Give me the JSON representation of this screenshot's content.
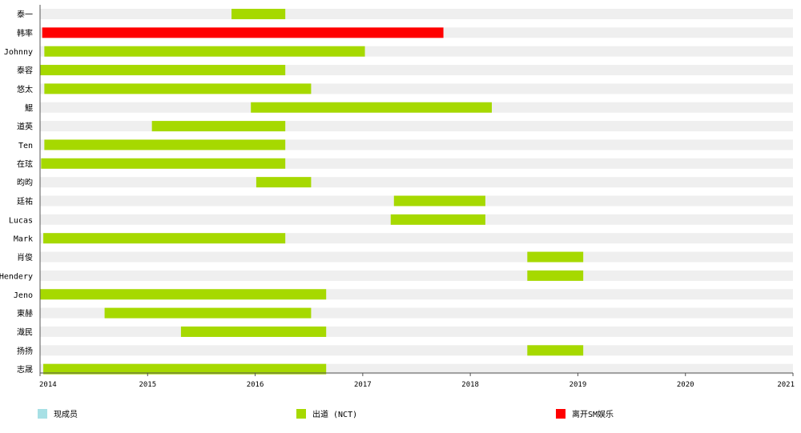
{
  "chart_data": {
    "type": "bar",
    "orientation": "horizontal-timeline",
    "xlim": [
      2014,
      2021
    ],
    "x_ticks": [
      "2014",
      "2015",
      "2016",
      "2017",
      "2018",
      "2019",
      "2020",
      "2021"
    ],
    "legend_placement": "bottom",
    "legend": [
      {
        "name": "现成员",
        "color": "#a7e0e5"
      },
      {
        "name": "出道 (NCT)",
        "color": "#a6d900"
      },
      {
        "name": "离开SM娱乐",
        "color": "#ff0000"
      }
    ],
    "members": [
      {
        "name": "泰一",
        "membership": [
          2014,
          2021
        ],
        "bar": [
          2015.78,
          2016.28
        ],
        "series": "出道 (NCT)"
      },
      {
        "name": "韩率",
        "membership": [
          2014,
          2021
        ],
        "bar": [
          2014.02,
          2017.75
        ],
        "series": "离开SM娱乐"
      },
      {
        "name": "Johnny",
        "membership": [
          2014,
          2021
        ],
        "bar": [
          2014.04,
          2017.02
        ],
        "series": "出道 (NCT)"
      },
      {
        "name": "泰容",
        "membership": [
          2014,
          2021
        ],
        "bar": [
          2014.0,
          2016.28
        ],
        "series": "出道 (NCT)"
      },
      {
        "name": "悠太",
        "membership": [
          2014,
          2021
        ],
        "bar": [
          2014.04,
          2016.52
        ],
        "series": "出道 (NCT)"
      },
      {
        "name": "鯤",
        "membership": [
          2014,
          2021
        ],
        "bar": [
          2015.96,
          2018.2
        ],
        "series": "出道 (NCT)"
      },
      {
        "name": "道英",
        "membership": [
          2014,
          2021
        ],
        "bar": [
          2015.04,
          2016.28
        ],
        "series": "出道 (NCT)"
      },
      {
        "name": "Ten",
        "membership": [
          2014,
          2021
        ],
        "bar": [
          2014.04,
          2016.28
        ],
        "series": "出道 (NCT)"
      },
      {
        "name": "在玹",
        "membership": [
          2014,
          2021
        ],
        "bar": [
          2014.01,
          2016.28
        ],
        "series": "出道 (NCT)"
      },
      {
        "name": "昀昀",
        "membership": [
          2014,
          2021
        ],
        "bar": [
          2016.01,
          2016.52
        ],
        "series": "出道 (NCT)"
      },
      {
        "name": "廷祐",
        "membership": [
          2014,
          2021
        ],
        "bar": [
          2017.29,
          2018.14
        ],
        "series": "出道 (NCT)"
      },
      {
        "name": "Lucas",
        "membership": [
          2014,
          2021
        ],
        "bar": [
          2017.26,
          2018.14
        ],
        "series": "出道 (NCT)"
      },
      {
        "name": "Mark",
        "membership": [
          2014,
          2021
        ],
        "bar": [
          2014.03,
          2016.28
        ],
        "series": "出道 (NCT)"
      },
      {
        "name": "肖俊",
        "membership": [
          2014,
          2021
        ],
        "bar": [
          2018.53,
          2019.05
        ],
        "series": "出道 (NCT)"
      },
      {
        "name": "Hendery",
        "membership": [
          2014,
          2021
        ],
        "bar": [
          2018.53,
          2019.05
        ],
        "series": "出道 (NCT)"
      },
      {
        "name": "Jeno",
        "membership": [
          2014,
          2021
        ],
        "bar": [
          2014.0,
          2016.66
        ],
        "series": "出道 (NCT)"
      },
      {
        "name": "東赫",
        "membership": [
          2014,
          2021
        ],
        "bar": [
          2014.6,
          2016.52
        ],
        "series": "出道 (NCT)"
      },
      {
        "name": "渽民",
        "membership": [
          2014,
          2021
        ],
        "bar": [
          2015.31,
          2016.66
        ],
        "series": "出道 (NCT)"
      },
      {
        "name": "扬扬",
        "membership": [
          2014,
          2021
        ],
        "bar": [
          2018.53,
          2019.05
        ],
        "series": "出道 (NCT)"
      },
      {
        "name": "志晟",
        "membership": [
          2014,
          2021
        ],
        "bar": [
          2014.03,
          2016.66
        ],
        "series": "出道 (NCT)"
      }
    ]
  }
}
